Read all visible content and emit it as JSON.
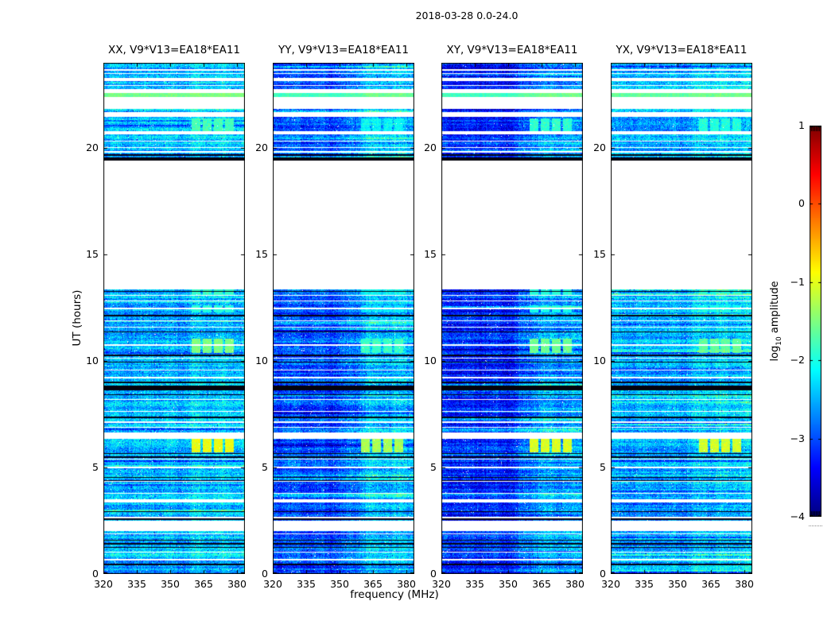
{
  "figure": {
    "title": "2018-03-28 0.0-24.0",
    "xlabel": "frequency (MHz)",
    "ylabel": "UT (hours)",
    "background_color": "#ffffff",
    "text_color": "#000000",
    "axes_edge_color": "#000000"
  },
  "chart_data": {
    "type": "heatmap",
    "description": "Four polarization dynamic spectra (waterfall plots) of baseline V9*V13=EA18*EA11 for 2018-03-28, UT 0-24 h vs frequency 320-384 MHz, color = log10 amplitude with jet colormap",
    "panels": [
      {
        "title": "XX, V9*V13=EA18*EA11",
        "base_log_amp": -2.5,
        "high_freq_boost": 0.12,
        "patch_delta": 0.0,
        "bright_delta": 0.0,
        "seed": 11
      },
      {
        "title": "YY, V9*V13=EA18*EA11",
        "base_log_amp": -3.0,
        "high_freq_boost": 0.55,
        "patch_delta": -0.35,
        "bright_delta": -0.25,
        "seed": 22
      },
      {
        "title": "XY, V9*V13=EA18*EA11",
        "base_log_amp": -3.2,
        "high_freq_boost": 0.6,
        "patch_delta": -0.1,
        "bright_delta": -0.25,
        "seed": 33
      },
      {
        "title": "YX, V9*V13=EA18*EA11",
        "base_log_amp": -2.55,
        "high_freq_boost": 0.2,
        "patch_delta": -0.15,
        "bright_delta": -0.1,
        "seed": 44
      }
    ],
    "x_axis": {
      "label": "frequency (MHz)",
      "range": [
        320,
        383.6
      ],
      "tick_values": [
        320,
        335,
        350,
        365,
        380
      ],
      "tick_labels": [
        "320",
        "335",
        "350",
        "365",
        "380"
      ]
    },
    "y_axis": {
      "label": "UT (hours)",
      "range": [
        0,
        24
      ],
      "tick_values": [
        0,
        5,
        10,
        15,
        20
      ],
      "tick_labels": [
        "0",
        "5",
        "10",
        "15",
        "20"
      ]
    },
    "colorbar": {
      "label_pre": "log",
      "label_sub": "10",
      "label_post": " amplitude",
      "range": [
        -4,
        1
      ],
      "colormap": "jet",
      "tick_values": [
        1,
        0,
        -1,
        -2,
        -3,
        -4
      ],
      "tick_labels": [
        "1",
        "0",
        "−1",
        "−2",
        "−3",
        "−4"
      ]
    },
    "observing_bands": [
      {
        "t0": 0.0,
        "t1": 2.0,
        "kind": "data"
      },
      {
        "t0": 2.0,
        "t1": 2.5,
        "kind": "gap"
      },
      {
        "t0": 2.5,
        "t1": 3.35,
        "kind": "data"
      },
      {
        "t0": 3.35,
        "t1": 3.5,
        "kind": "gap"
      },
      {
        "t0": 3.5,
        "t1": 6.35,
        "kind": "data"
      },
      {
        "t0": 6.35,
        "t1": 6.65,
        "kind": "gap"
      },
      {
        "t0": 6.65,
        "t1": 13.35,
        "kind": "data"
      },
      {
        "t0": 13.35,
        "t1": 19.42,
        "kind": "gap"
      },
      {
        "t0": 19.42,
        "t1": 19.55,
        "kind": "flagged"
      },
      {
        "t0": 19.55,
        "t1": 20.65,
        "kind": "data"
      },
      {
        "t0": 20.65,
        "t1": 20.8,
        "kind": "gap"
      },
      {
        "t0": 20.8,
        "t1": 21.45,
        "kind": "data"
      },
      {
        "t0": 21.45,
        "t1": 21.6,
        "kind": "gap"
      },
      {
        "t0": 21.6,
        "t1": 21.85,
        "kind": "data"
      },
      {
        "t0": 21.85,
        "t1": 22.38,
        "kind": "gap"
      },
      {
        "t0": 22.38,
        "t1": 22.58,
        "kind": "bright"
      },
      {
        "t0": 22.58,
        "t1": 22.75,
        "kind": "gap"
      },
      {
        "t0": 22.75,
        "t1": 23.15,
        "kind": "data"
      },
      {
        "t0": 23.15,
        "t1": 23.3,
        "kind": "gap"
      },
      {
        "t0": 23.3,
        "t1": 24.0,
        "kind": "data"
      }
    ],
    "flagged_bands": [
      {
        "t0": 19.42,
        "t1": 19.55
      },
      {
        "t0": 8.62,
        "t1": 8.85
      }
    ],
    "white_line_times": [
      23.72,
      23.5,
      22.95,
      21.7,
      20.35,
      20.05,
      19.85,
      13.1,
      12.85,
      12.5,
      11.9,
      11.6,
      10.8,
      10.15,
      9.6,
      9.25,
      8.2,
      7.65,
      7.15,
      6.9,
      5.4,
      5.05,
      4.35,
      3.8,
      2.7,
      1.9,
      1.05,
      0.7
    ],
    "black_line_times": [
      19.7,
      13.28,
      12.15,
      11.4,
      10.3,
      9.95,
      9.05,
      8.45,
      7.4,
      5.68,
      5.52,
      4.55,
      4.42,
      2.95,
      2.6,
      1.62,
      1.45,
      1.28,
      0.5
    ],
    "rfi_patches": [
      {
        "t0": 5.75,
        "t1": 6.35,
        "f0": 359.5,
        "f1": 379.3,
        "level": -0.95
      },
      {
        "t0": 10.4,
        "t1": 11.05,
        "f0": 359.5,
        "f1": 379.3,
        "level": -1.5
      },
      {
        "t0": 12.3,
        "t1": 12.6,
        "f0": 359.5,
        "f1": 379.3,
        "level": -1.95
      },
      {
        "t0": 13.15,
        "t1": 13.35,
        "f0": 359.5,
        "f1": 379.3,
        "level": -1.85
      },
      {
        "t0": 20.8,
        "t1": 21.4,
        "f0": 359.5,
        "f1": 379.3,
        "level": -1.8
      }
    ],
    "bright_rows": [
      {
        "t0": 22.38,
        "t1": 22.58,
        "level": -1.55
      }
    ]
  }
}
